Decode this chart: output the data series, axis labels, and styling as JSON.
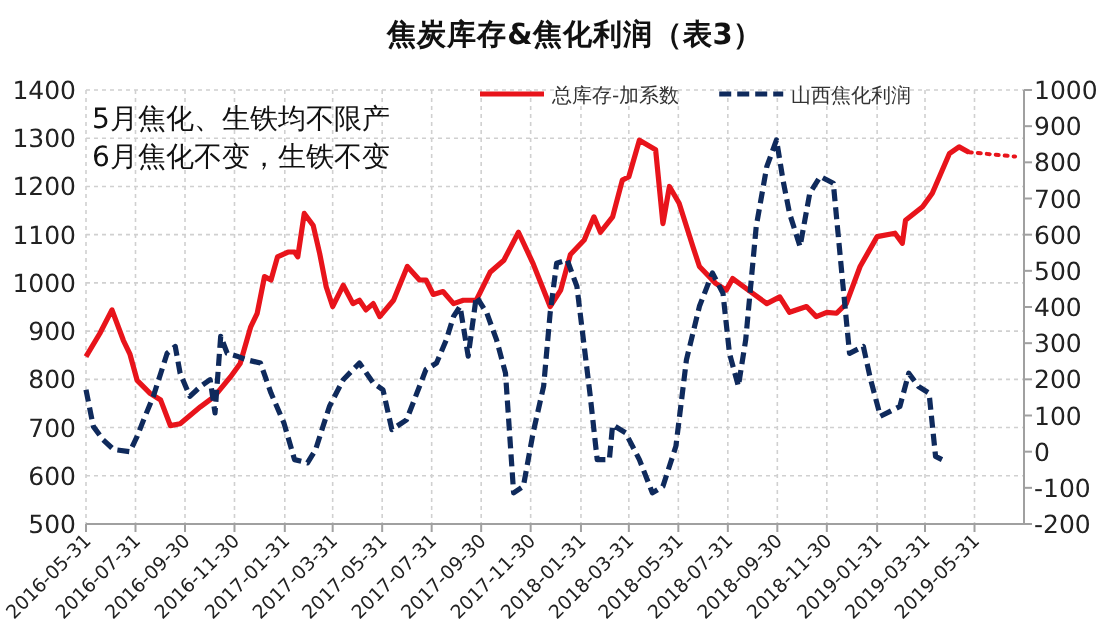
{
  "chart_data": {
    "type": "line",
    "title": "焦炭库存&焦化利润（表3）",
    "annotations": [
      "5月焦化、生铁均不限产",
      "6月焦化不变，生铁不变"
    ],
    "xlim": [
      "2016-05-31",
      "2019-07-31"
    ],
    "xticks": [
      "2016-05-31",
      "2016-07-31",
      "2016-09-30",
      "2016-11-30",
      "2017-01-31",
      "2017-03-31",
      "2017-05-31",
      "2017-07-31",
      "2017-09-30",
      "2017-11-30",
      "2018-01-31",
      "2018-03-31",
      "2018-05-31",
      "2018-07-31",
      "2018-09-30",
      "2018-11-30",
      "2019-01-31",
      "2019-03-31",
      "2019-05-31"
    ],
    "ylim": [
      500,
      1400
    ],
    "yticks": [
      500,
      600,
      700,
      800,
      900,
      1000,
      1100,
      1200,
      1300,
      1400
    ],
    "y2lim": [
      -200,
      1000
    ],
    "y2ticks": [
      -200,
      -100,
      0,
      100,
      200,
      300,
      400,
      500,
      600,
      700,
      800,
      900,
      1000
    ],
    "grid": true,
    "legend": "top right",
    "marker": "none",
    "series": [
      {
        "name": "总库存-加系数",
        "color": "#e8141b",
        "axis": "y",
        "line_style": "solid",
        "x": [
          "2016-05-31",
          "2016-06-17",
          "2016-07-02",
          "2016-07-16",
          "2016-07-24",
          "2016-08-02",
          "2016-08-18",
          "2016-08-31",
          "2016-09-12",
          "2016-09-24",
          "2016-10-19",
          "2016-11-05",
          "2016-11-25",
          "2016-12-07",
          "2016-12-20",
          "2016-12-28",
          "2017-01-06",
          "2017-01-14",
          "2017-01-22",
          "2017-02-04",
          "2017-02-12",
          "2017-02-16",
          "2017-02-24",
          "2017-03-07",
          "2017-03-15",
          "2017-03-23",
          "2017-03-31",
          "2017-04-13",
          "2017-04-25",
          "2017-05-03",
          "2017-05-11",
          "2017-05-20",
          "2017-05-28",
          "2017-06-14",
          "2017-07-01",
          "2017-07-16",
          "2017-07-24",
          "2017-08-02",
          "2017-08-14",
          "2017-08-27",
          "2017-09-08",
          "2017-09-24",
          "2017-10-11",
          "2017-10-28",
          "2017-11-15",
          "2017-12-03",
          "2017-12-24",
          "2018-01-06",
          "2018-01-18",
          "2018-02-04",
          "2018-02-16",
          "2018-02-24",
          "2018-03-11",
          "2018-03-23",
          "2018-03-31",
          "2018-04-13",
          "2018-05-03",
          "2018-05-12",
          "2018-05-20",
          "2018-06-01",
          "2018-06-18",
          "2018-06-26",
          "2018-07-16",
          "2018-07-29",
          "2018-08-06",
          "2018-08-31",
          "2018-09-17",
          "2018-10-03",
          "2018-10-15",
          "2018-11-05",
          "2018-11-17",
          "2018-11-30",
          "2018-12-12",
          "2018-12-24",
          "2019-01-10",
          "2019-01-31",
          "2019-02-22",
          "2019-03-03",
          "2019-03-07",
          "2019-03-28",
          "2019-04-09",
          "2019-04-30",
          "2019-05-12",
          "2019-05-24"
        ],
        "values": [
          847,
          895,
          944,
          881,
          853,
          798,
          771,
          757,
          704,
          708,
          743,
          764,
          805,
          833,
          909,
          937,
          1013,
          1006,
          1054,
          1064,
          1064,
          1054,
          1144,
          1119,
          1061,
          992,
          951,
          995,
          957,
          964,
          944,
          957,
          930,
          964,
          1034,
          1006,
          1006,
          976,
          982,
          957,
          964,
          964,
          1022,
          1047,
          1105,
          1040,
          951,
          985,
          1059,
          1089,
          1137,
          1105,
          1137,
          1213,
          1220,
          1296,
          1276,
          1123,
          1200,
          1165,
          1075,
          1034,
          999,
          985,
          1009,
          978,
          957,
          971,
          939,
          951,
          930,
          939,
          937,
          957,
          1034,
          1096,
          1103,
          1082,
          1130,
          1158,
          1186,
          1268,
          1282,
          1271
        ]
      },
      {
        "color": "#e8141b",
        "axis": "y",
        "line_style": "dotted",
        "x": [
          "2019-05-24",
          "2019-07-20"
        ],
        "values": [
          1271,
          1262
        ]
      },
      {
        "name": "山西焦化利润",
        "color": "#0f2a5c",
        "axis": "y2",
        "line_style": "dashed",
        "x": [
          "2016-05-31",
          "2016-06-09",
          "2016-06-21",
          "2016-07-04",
          "2016-07-24",
          "2016-08-02",
          "2016-08-10",
          "2016-08-22",
          "2016-09-08",
          "2016-09-18",
          "2016-09-24",
          "2016-10-06",
          "2016-10-19",
          "2016-10-31",
          "2016-11-06",
          "2016-11-13",
          "2016-11-21",
          "2016-12-03",
          "2016-12-15",
          "2017-01-01",
          "2017-01-14",
          "2017-01-30",
          "2017-02-12",
          "2017-02-28",
          "2017-03-10",
          "2017-03-27",
          "2017-04-13",
          "2017-05-03",
          "2017-05-20",
          "2017-06-01",
          "2017-06-12",
          "2017-06-30",
          "2017-07-08",
          "2017-07-24",
          "2017-08-06",
          "2017-08-18",
          "2017-08-27",
          "2017-09-04",
          "2017-09-14",
          "2017-09-24",
          "2017-10-07",
          "2017-10-19",
          "2017-10-30",
          "2017-11-09",
          "2017-11-21",
          "2017-12-03",
          "2017-12-16",
          "2017-12-24",
          "2018-01-01",
          "2018-01-14",
          "2018-01-26",
          "2018-02-11",
          "2018-02-20",
          "2018-03-07",
          "2018-03-11",
          "2018-03-27",
          "2018-04-13",
          "2018-04-29",
          "2018-05-12",
          "2018-05-28",
          "2018-06-10",
          "2018-06-26",
          "2018-07-12",
          "2018-07-25",
          "2018-08-02",
          "2018-08-13",
          "2018-08-22",
          "2018-09-04",
          "2018-09-17",
          "2018-09-29",
          "2018-10-07",
          "2018-10-15",
          "2018-10-28",
          "2018-11-09",
          "2018-11-22",
          "2018-12-08",
          "2018-12-20",
          "2018-12-28",
          "2019-01-14",
          "2019-01-23",
          "2019-02-04",
          "2019-02-28",
          "2019-03-11",
          "2019-03-23",
          "2019-04-05",
          "2019-04-13",
          "2019-04-21"
        ],
        "values": [
          171,
          70,
          33,
          6,
          0,
          42,
          88,
          153,
          272,
          291,
          217,
          153,
          180,
          199,
          107,
          319,
          272,
          264,
          254,
          245,
          162,
          79,
          -22,
          -31,
          6,
          125,
          199,
          245,
          190,
          171,
          61,
          88,
          134,
          227,
          245,
          309,
          374,
          402,
          264,
          429,
          383,
          309,
          217,
          -114,
          -96,
          52,
          181,
          383,
          521,
          530,
          457,
          162,
          -22,
          -22,
          74,
          52,
          -22,
          -114,
          -96,
          15,
          254,
          402,
          494,
          438,
          272,
          181,
          309,
          623,
          788,
          862,
          751,
          659,
          567,
          715,
          761,
          742,
          457,
          272,
          291,
          199,
          98,
          125,
          217,
          180,
          162,
          -13,
          -22
        ]
      }
    ]
  }
}
